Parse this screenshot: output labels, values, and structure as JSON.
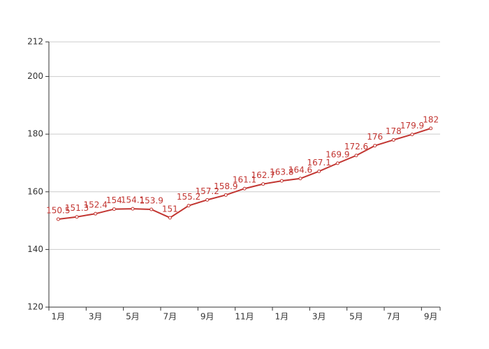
{
  "chart_data": {
    "type": "line",
    "categories": [
      "1月",
      null,
      "3月",
      null,
      "5月",
      null,
      "7月",
      null,
      "9月",
      null,
      "11月",
      null,
      "1月",
      null,
      "3月",
      null,
      "5月",
      null,
      "7月",
      null,
      "9月"
    ],
    "series": [
      {
        "color": "#c23531",
        "values": [
          150.5,
          151.3,
          152.4,
          154,
          154.1,
          153.9,
          151,
          155.2,
          157.2,
          158.9,
          161.1,
          162.7,
          163.8,
          164.6,
          167.1,
          169.9,
          172.6,
          176,
          178,
          179.9,
          182
        ]
      }
    ],
    "ylim": [
      120,
      212
    ],
    "yticks": [
      120,
      140,
      160,
      180,
      200,
      212
    ],
    "grid": true
  }
}
